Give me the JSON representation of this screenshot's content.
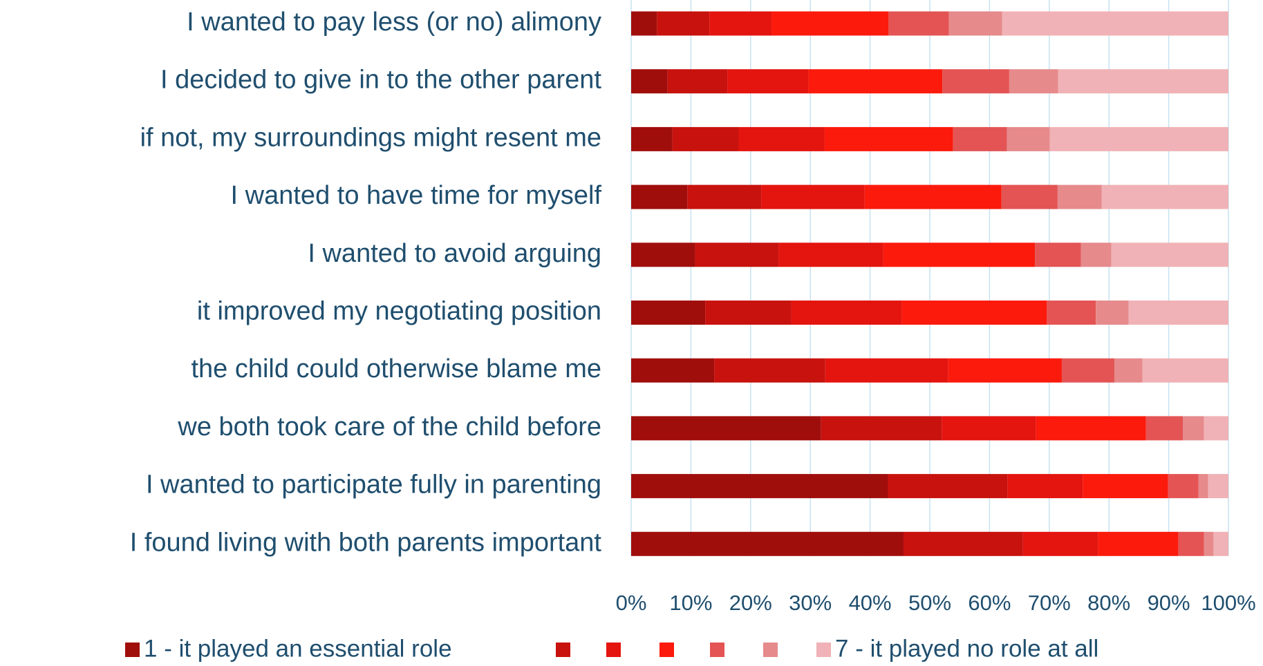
{
  "chart_data": {
    "type": "stacked_bar_horizontal",
    "categories": [
      "I wanted to pay less (or no) alimony",
      "I decided to give in to the other parent",
      "if not, my surroundings might resent me",
      "I wanted to have time for myself",
      "I wanted to avoid arguing",
      "it improved my negotiating position",
      "the child could otherwise blame me",
      "we both took care of the child before",
      "I wanted to participate fully in parenting",
      "I found living with both parents important"
    ],
    "series": [
      {
        "name": "1 - it played an essential role",
        "color": "#a00e0c",
        "values": [
          4.3,
          6.1,
          6.9,
          9.4,
          10.7,
          12.4,
          13.9,
          31.8,
          43.0,
          45.6
        ]
      },
      {
        "name": null,
        "color": "#c8120e",
        "values": [
          8.8,
          10.0,
          11.1,
          12.4,
          14.0,
          14.4,
          18.6,
          20.2,
          20.0,
          20.0
        ]
      },
      {
        "name": null,
        "color": "#e4140f",
        "values": [
          10.4,
          13.6,
          14.4,
          17.3,
          17.5,
          18.5,
          20.6,
          15.8,
          12.6,
          12.6
        ]
      },
      {
        "name": null,
        "color": "#fb1a0c",
        "values": [
          19.6,
          22.4,
          21.5,
          22.9,
          25.4,
          24.3,
          19.0,
          18.4,
          14.3,
          13.4
        ]
      },
      {
        "name": null,
        "color": "#e45454",
        "values": [
          10.1,
          11.2,
          9.0,
          9.4,
          7.7,
          8.2,
          8.8,
          6.2,
          5.1,
          4.3
        ]
      },
      {
        "name": null,
        "color": "#e68a8c",
        "values": [
          8.9,
          8.2,
          7.2,
          7.4,
          5.1,
          5.5,
          4.7,
          3.5,
          1.6,
          1.6
        ]
      },
      {
        "name": "7 - it played no role at all",
        "color": "#f0b2b6",
        "values": [
          37.9,
          28.5,
          29.9,
          21.2,
          19.6,
          16.7,
          14.4,
          4.1,
          3.4,
          2.5
        ]
      }
    ],
    "xlim": [
      0,
      100
    ],
    "xticks": [
      {
        "value": 0,
        "label": "0%"
      },
      {
        "value": 10,
        "label": "10%"
      },
      {
        "value": 20,
        "label": "20%"
      },
      {
        "value": 30,
        "label": "30%"
      },
      {
        "value": 40,
        "label": "40%"
      },
      {
        "value": 50,
        "label": "50%"
      },
      {
        "value": 60,
        "label": "60%"
      },
      {
        "value": 70,
        "label": "70%"
      },
      {
        "value": 80,
        "label": "80%"
      },
      {
        "value": 90,
        "label": "90%"
      },
      {
        "value": 100,
        "label": "100%"
      }
    ],
    "grid": true,
    "legend": "bottom"
  }
}
